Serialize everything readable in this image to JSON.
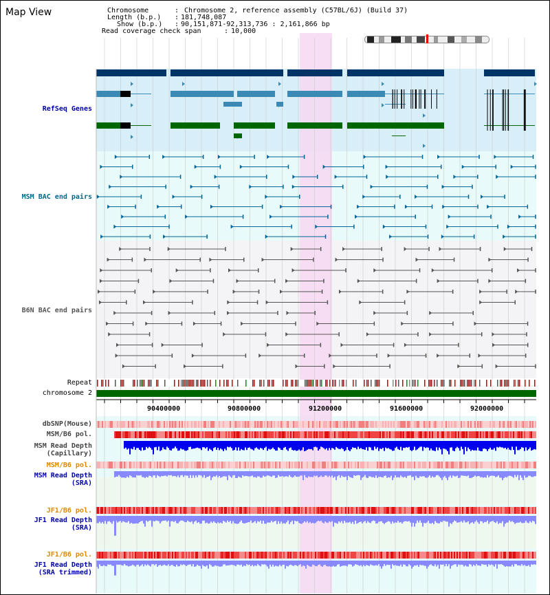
{
  "title": "Map View",
  "info": {
    "chromosome_label": "Chromosome",
    "chromosome_value": "Chromosome 2, reference assembly (C57BL/6J) (Build 37)",
    "length_label": "Length (b.p.)",
    "length_value": "181,748,087",
    "show_label": "Show (b.p.)",
    "show_value": "90,151,871-92,313,736 : 2,161,866 bp",
    "coverage_label": "Read coverage check span",
    "coverage_value": "10,000"
  },
  "tracks": {
    "refseq": "RefSeq Genes",
    "msm_bac": "MSM BAC end pairs",
    "b6n_bac": "B6N BAC end pairs",
    "repeat": "Repeat",
    "chromosome": "chromosome 2",
    "dbsnp": "dbSNP(Mouse)",
    "msm_b6_pol_1": "MSM/B6 pol.",
    "msm_read_depth_cap_1": "MSM Read Depth",
    "msm_read_depth_cap_2": "(Capillary)",
    "msm_b6_pol_2": "MSM/B6 pol.",
    "msm_read_depth_sra_1": "MSM Read Depth",
    "msm_read_depth_sra_2": "(SRA)",
    "jf1_b6_pol_1": "JF1/B6 pol.",
    "jf1_read_depth_sra_1": "JF1 Read Depth",
    "jf1_read_depth_sra_2": "(SRA)",
    "jf1_b6_pol_2": "JF1/B6 pol.",
    "jf1_read_depth_trim_1": "JF1 Read Depth",
    "jf1_read_depth_trim_2": "(SRA trimmed)"
  },
  "axis": {
    "ticks": [
      "90400000",
      "90800000",
      "91200000",
      "91600000",
      "92000000"
    ]
  },
  "colors": {
    "refseq_bg": "#d8effa",
    "bac_bg": "#e8fafa",
    "highlight": "#f7d8f2",
    "gene_dark": "#003366",
    "gene_mid": "#3a8ab5",
    "gene_green": "#006600",
    "chromosome_bar": "#006600",
    "msm_bac_line": "#006699",
    "b6n_bac_line": "#555555",
    "depth_blue": "#0000ee",
    "depth_light": "#8888ff",
    "pol_red": "#ee3333",
    "label_blue": "#0000aa",
    "label_teal": "#006688",
    "label_orange": "#dd8800",
    "label_gray": "#555555"
  }
}
